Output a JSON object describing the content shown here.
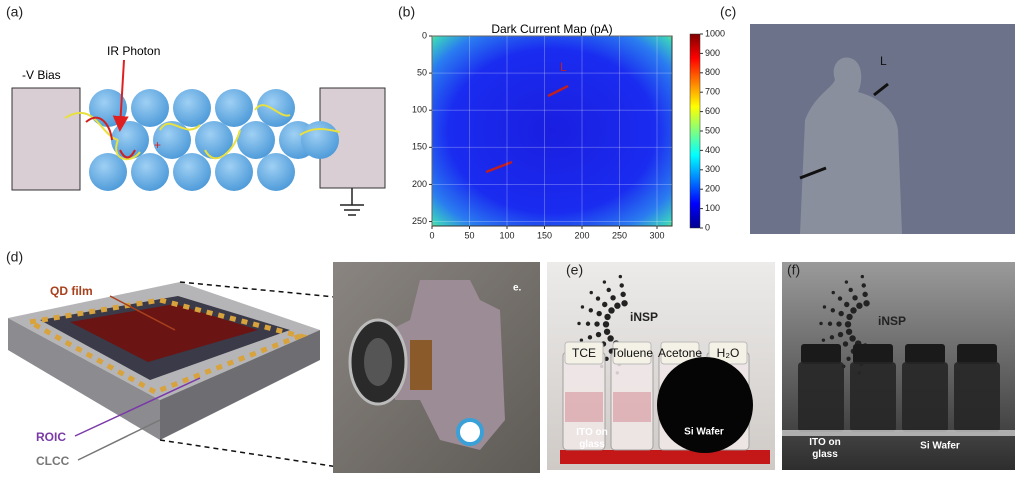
{
  "panels": {
    "a": {
      "label": "(a)",
      "bias": "-V Bias",
      "photon": "IR Photon"
    },
    "b": {
      "label": "(b)",
      "title": "Dark Current Map (pA)",
      "annotation": "L",
      "xlim": [
        0,
        320
      ],
      "xticks": [
        0,
        50,
        100,
        150,
        200,
        250,
        300
      ],
      "ylim": [
        0,
        256
      ],
      "yticks": [
        0,
        50,
        100,
        150,
        200,
        250
      ],
      "clim": [
        0,
        1000
      ],
      "cticks": [
        0,
        100,
        200,
        300,
        400,
        500,
        600,
        700,
        800,
        900,
        1000
      ]
    },
    "c": {
      "label": "(c)",
      "annotation": "L"
    },
    "d": {
      "label": "(d)",
      "qd_film": "QD film",
      "roic": "ROIC",
      "clcc": "CLCC"
    },
    "e_photo": {
      "label": "e."
    },
    "e": {
      "label": "(e)",
      "logo": "iNSP",
      "vials": [
        "TCE",
        "Toluene",
        "Acetone",
        "H₂O"
      ],
      "ito": [
        "ITO on",
        "glass"
      ],
      "wafer": "Si Wafer"
    },
    "f": {
      "label": "(f)",
      "logo": "iNSP",
      "ito": [
        "ITO on",
        "glass"
      ],
      "wafer": "Si Wafer"
    }
  }
}
